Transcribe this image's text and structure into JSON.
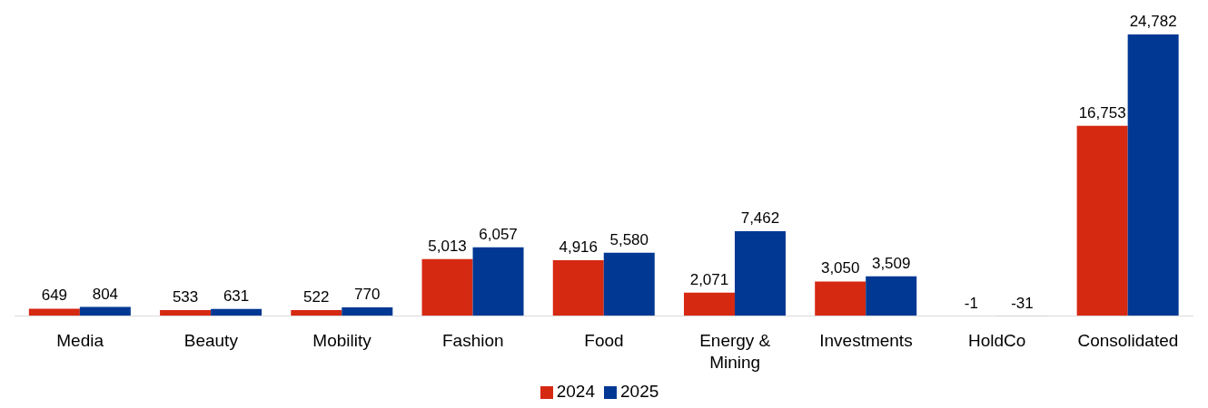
{
  "chart_data": {
    "type": "bar",
    "categories": [
      "Media",
      "Beauty",
      "Mobility",
      "Fashion",
      "Food",
      "Energy & Mining",
      "Investments",
      "HoldCo",
      "Consolidated"
    ],
    "series": [
      {
        "name": "2024",
        "color": "#d62912",
        "values": [
          649,
          533,
          522,
          5013,
          4916,
          2071,
          3050,
          -1,
          16753
        ],
        "value_labels": [
          "649",
          "533",
          "522",
          "5,013",
          "4,916",
          "2,071",
          "3,050",
          "-1",
          "16,753"
        ]
      },
      {
        "name": "2025",
        "color": "#003893",
        "values": [
          804,
          631,
          770,
          6057,
          5580,
          7462,
          3509,
          -31,
          24782
        ],
        "value_labels": [
          "804",
          "631",
          "770",
          "6,057",
          "5,580",
          "7,462",
          "3,509",
          "-31",
          "24,782"
        ]
      }
    ],
    "legend": "bottom",
    "grid": false
  }
}
